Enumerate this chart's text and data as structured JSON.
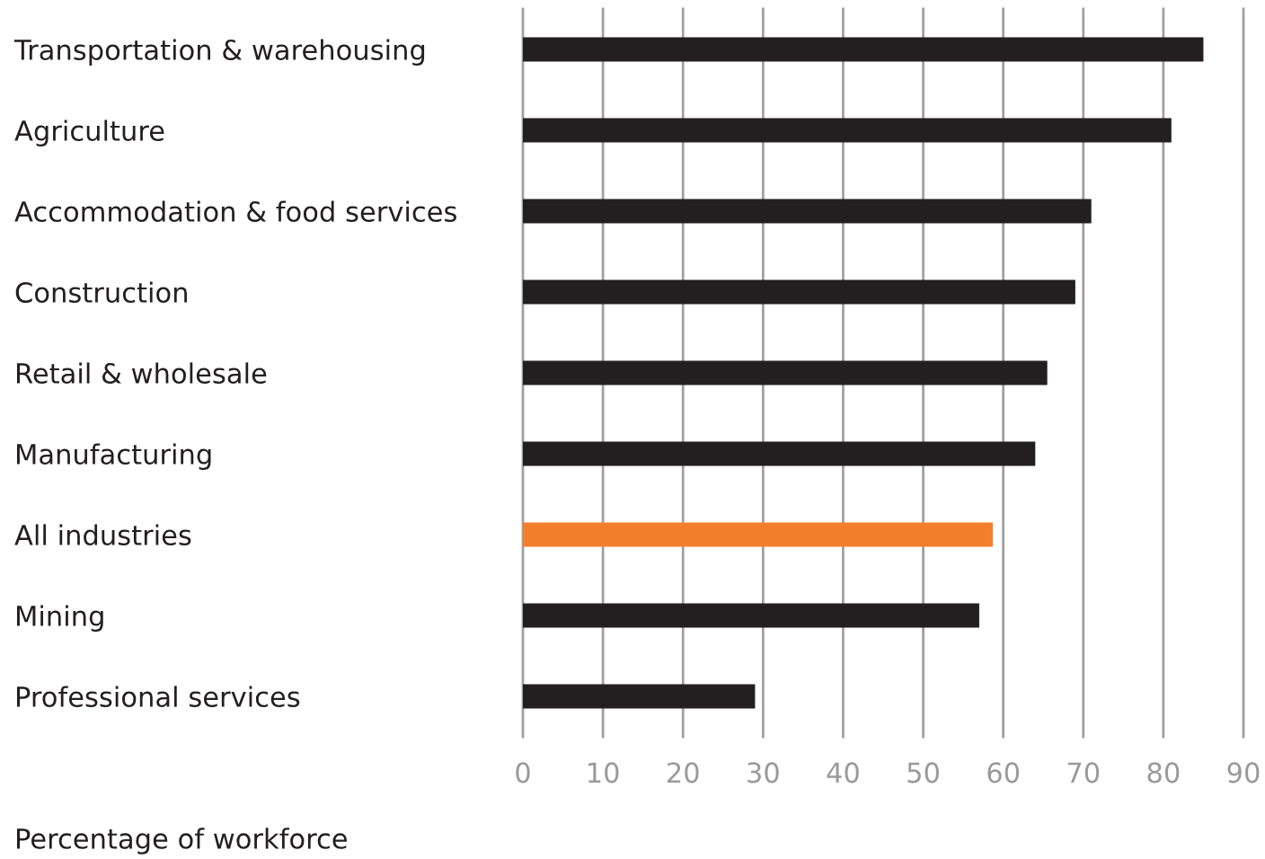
{
  "chart_data": {
    "type": "bar",
    "orientation": "horizontal",
    "categories": [
      "Transportation & warehousing",
      "Agriculture",
      "Accommodation & food services",
      "Construction",
      "Retail & wholesale",
      "Manufacturing",
      "All industries",
      "Mining",
      "Professional services"
    ],
    "values": [
      85,
      81,
      71,
      69,
      65.5,
      64,
      58.7,
      57,
      29
    ],
    "colors": [
      "#231f20",
      "#231f20",
      "#231f20",
      "#231f20",
      "#231f20",
      "#231f20",
      "#f37f2d",
      "#231f20",
      "#231f20"
    ],
    "xlim": [
      0,
      90
    ],
    "xticks": [
      0,
      10,
      20,
      30,
      40,
      50,
      60,
      70,
      80,
      90
    ],
    "annotations": [
      "Percentage of workforce"
    ],
    "grid": "x"
  }
}
